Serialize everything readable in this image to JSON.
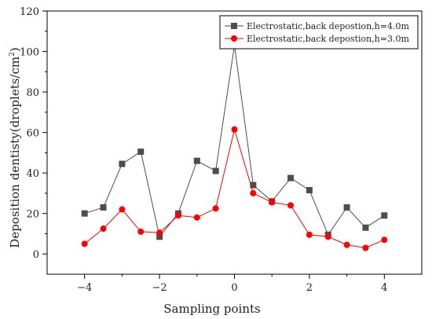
{
  "chart_data": {
    "type": "line",
    "title": "",
    "xlabel": "Sampling points",
    "ylabel_main": "Deposition dentisty(droplets/cm",
    "ylabel_sup": "2",
    "ylabel_close": ")",
    "xlim": [
      -5,
      5
    ],
    "ylim": [
      -10,
      120
    ],
    "xticks": [
      -4,
      -2,
      0,
      2,
      4
    ],
    "yticks": [
      0,
      20,
      40,
      60,
      80,
      100,
      120
    ],
    "grid": false,
    "legend_position": "top-right",
    "x": [
      -4,
      -3.5,
      -3,
      -2.5,
      -2,
      -1.5,
      -1,
      -0.5,
      0,
      0.5,
      1,
      1.5,
      2,
      2.5,
      3,
      3.5,
      4
    ],
    "series": [
      {
        "name": "Electrostatic,back depostion,h=4.0m",
        "color": "#4d4d4d",
        "marker": "square",
        "values": [
          20,
          23,
          44.5,
          50.5,
          8.5,
          20,
          46,
          41,
          103,
          34,
          26,
          37.5,
          31.5,
          9.5,
          23,
          13,
          19
        ]
      },
      {
        "name": "Electrostatic,back depostion,h=3.0m",
        "color": "#ff0000",
        "marker": "circle",
        "values": [
          5,
          12.5,
          22,
          11,
          10.5,
          19,
          18,
          22.5,
          61.5,
          30,
          25.5,
          24,
          9.5,
          8.5,
          4.5,
          3,
          7
        ]
      }
    ]
  }
}
